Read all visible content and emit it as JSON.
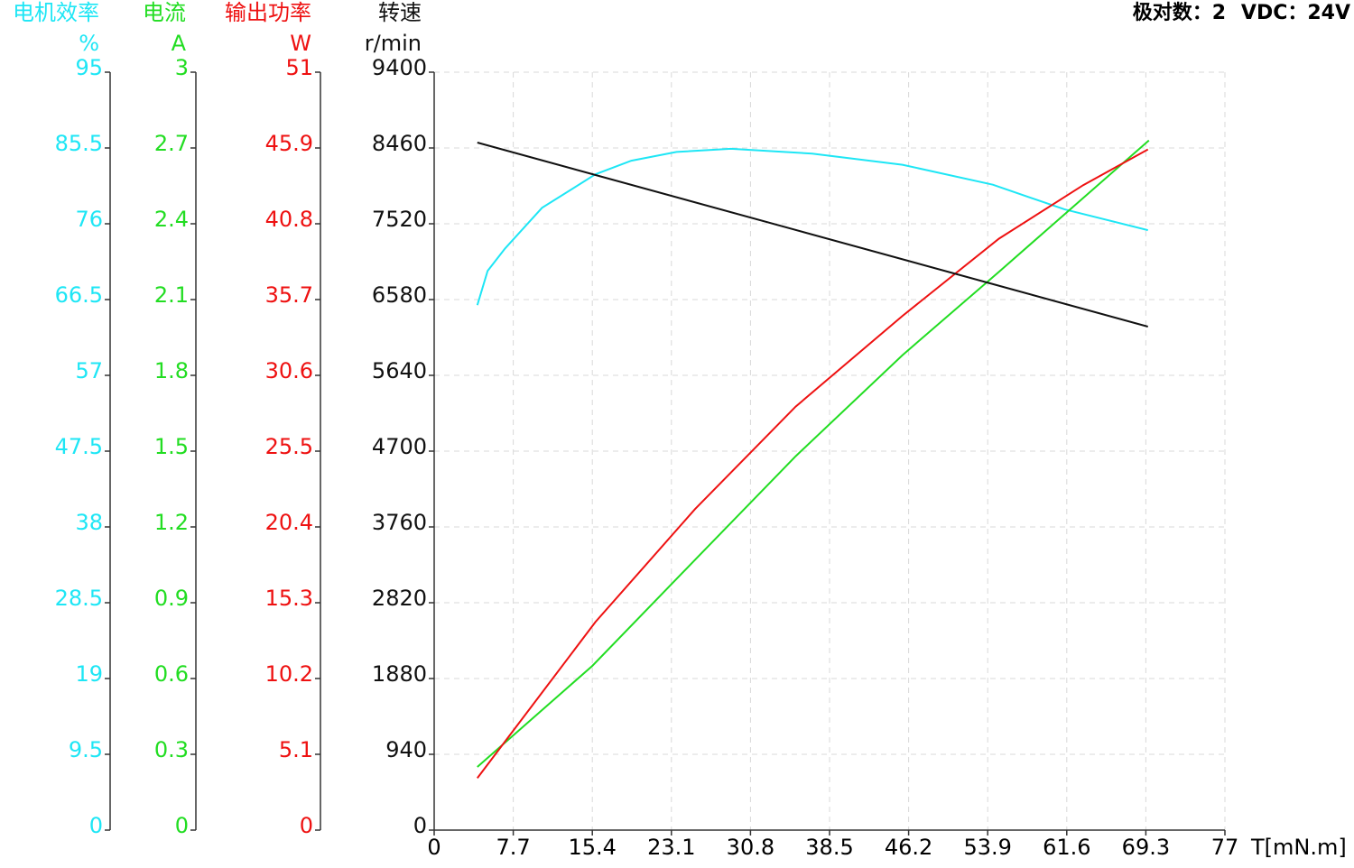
{
  "chart_data": {
    "type": "line",
    "header": [
      "极对数：2",
      "VDC：24V"
    ],
    "xlabel": "T[mN.m]",
    "xlim": [
      0,
      77
    ],
    "xticks": [
      0,
      7.7,
      15.4,
      23.1,
      30.8,
      38.5,
      46.2,
      53.9,
      61.6,
      69.3,
      77
    ],
    "grid": true,
    "yaxes": [
      {
        "title": "电机效率",
        "unit": "%",
        "color": "#1ee6f5",
        "ylim": [
          0,
          95
        ],
        "yticks": [
          0,
          9.5,
          19,
          28.5,
          38,
          47.5,
          57,
          66.5,
          76,
          85.5,
          95
        ]
      },
      {
        "title": "电流",
        "unit": "A",
        "color": "#22dd22",
        "ylim": [
          0,
          3
        ],
        "yticks": [
          0,
          0.3,
          0.6,
          0.9,
          1.2,
          1.5,
          1.8,
          2.1,
          2.4,
          2.7,
          3
        ]
      },
      {
        "title": "输出功率",
        "unit": "W",
        "color": "#ee1111",
        "ylim": [
          0,
          51
        ],
        "yticks": [
          0,
          5.1,
          10.2,
          15.3,
          20.4,
          25.5,
          30.6,
          35.7,
          40.8,
          45.9,
          51
        ]
      },
      {
        "title": "转速",
        "unit": "r/min",
        "color": "#111111",
        "ylim": [
          0,
          9400
        ],
        "yticks": [
          0,
          940,
          1880,
          2820,
          3760,
          4700,
          5640,
          6580,
          7520,
          8460,
          9400
        ]
      }
    ],
    "series": [
      {
        "axis": 0,
        "color": "#1ee6f5",
        "x": [
          4.2,
          5.2,
          6.9,
          10.5,
          15.7,
          19.2,
          23.6,
          28.9,
          36.8,
          45.6,
          54.4,
          61.4,
          69.5
        ],
        "values": [
          65.8,
          70.1,
          72.9,
          78.0,
          82.2,
          83.9,
          85.0,
          85.4,
          84.8,
          83.4,
          80.9,
          77.8,
          75.2
        ]
      },
      {
        "axis": 1,
        "color": "#22dd22",
        "x": [
          4.2,
          15.4,
          25.4,
          35.2,
          45.6,
          55,
          69.6
        ],
        "values": [
          0.25,
          0.65,
          1.07,
          1.48,
          1.88,
          2.21,
          2.73
        ]
      },
      {
        "axis": 2,
        "color": "#ee1111",
        "x": [
          4.2,
          15.7,
          25.4,
          35.2,
          45.6,
          55,
          63.2,
          69.5
        ],
        "values": [
          3.5,
          14.0,
          21.6,
          28.5,
          34.6,
          39.8,
          43.4,
          45.8
        ]
      },
      {
        "axis": 3,
        "color": "#111111",
        "x": [
          4.2,
          69.5
        ],
        "values": [
          8527,
          6244
        ]
      }
    ]
  }
}
